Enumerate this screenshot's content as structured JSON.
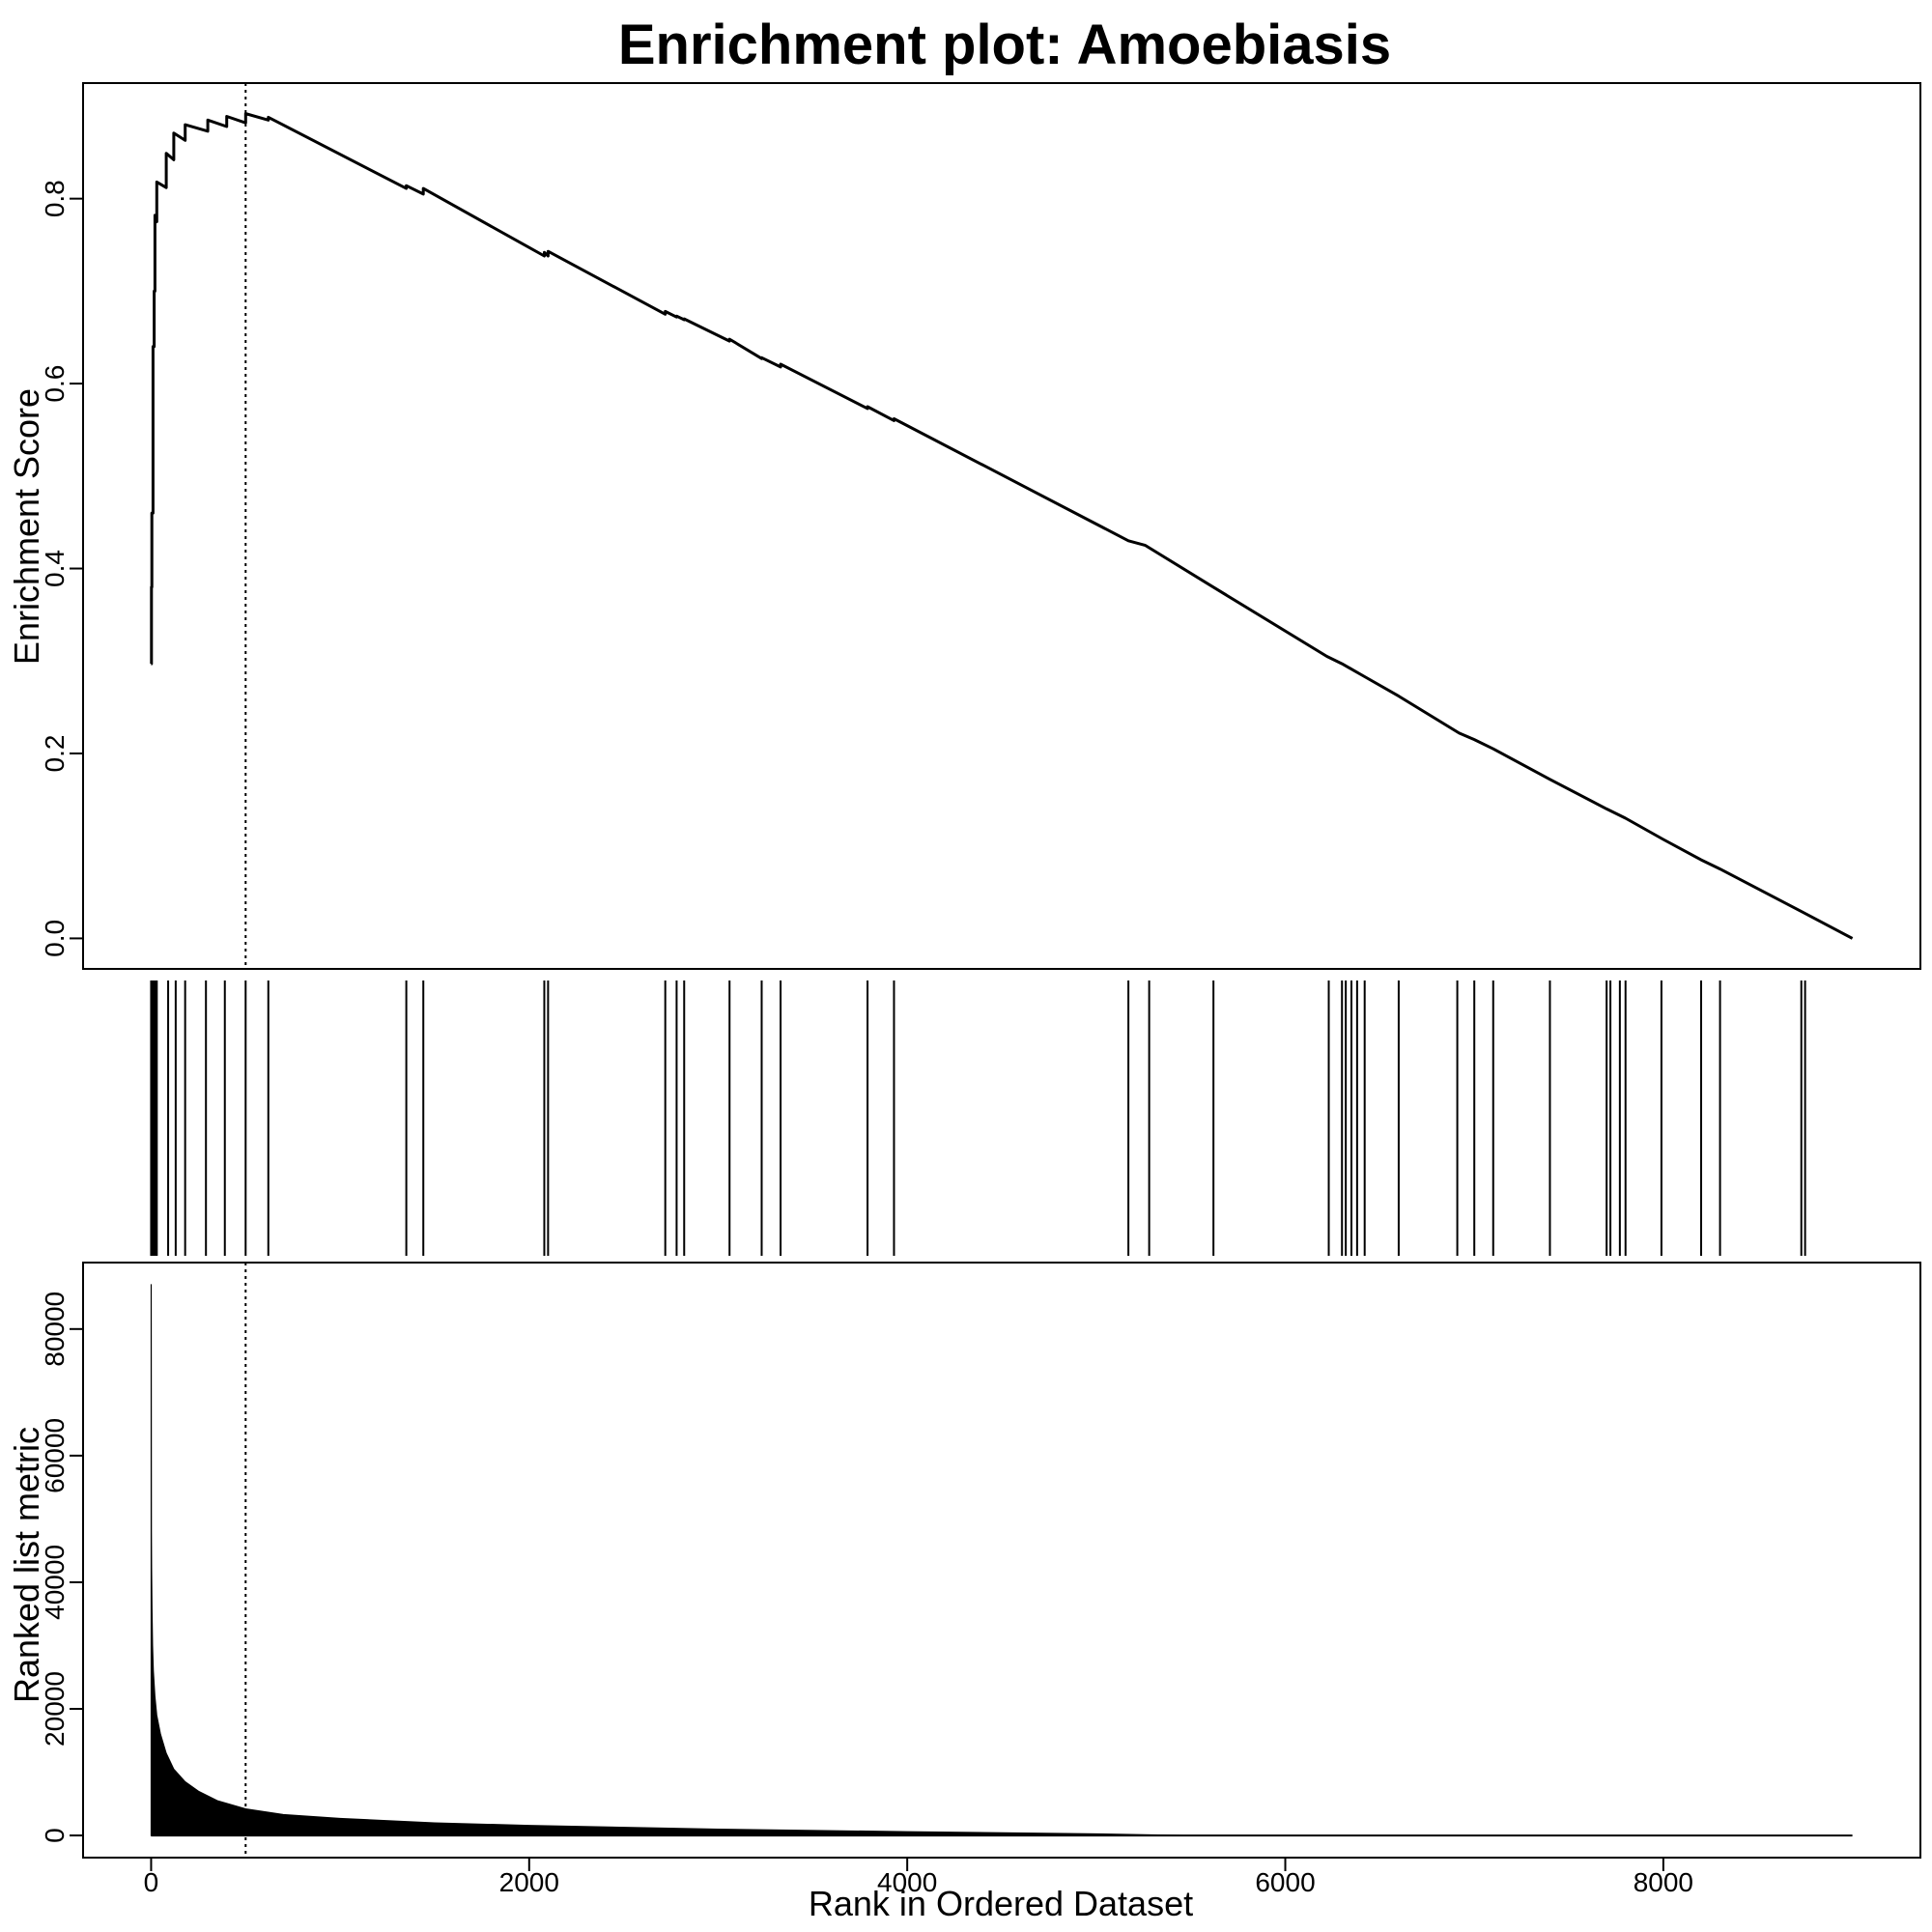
{
  "chart_data": [
    {
      "type": "line",
      "title": "Enrichment plot: Amoebiasis",
      "xlabel": "",
      "ylabel": "Enrichment Score",
      "xlim": [
        -360,
        9360
      ],
      "ylim": [
        -0.033,
        0.925
      ],
      "yticks": [
        "0.0",
        "0.2",
        "0.4",
        "0.6",
        "0.8"
      ],
      "ytick_values": [
        0,
        0.2,
        0.4,
        0.6,
        0.8
      ],
      "grid": false,
      "legend": "none",
      "reference_line": {
        "x": 500,
        "style": "dotted"
      },
      "series": [
        {
          "x": [
            0,
            2,
            2,
            4,
            4,
            10,
            10,
            16,
            16,
            20,
            20,
            30,
            30,
            80,
            80,
            120,
            120,
            180,
            180,
            300,
            300,
            400,
            400,
            500,
            500,
            620,
            620,
            1350,
            1350,
            1440,
            1440,
            2080,
            2080,
            2100,
            2100,
            2720,
            2720,
            2780,
            2780,
            2820,
            2820,
            3060,
            3060,
            3230,
            3230,
            3330,
            3330,
            3790,
            3790,
            3930,
            3930,
            5170,
            5260,
            5610,
            6220,
            6300,
            6360,
            6420,
            6600,
            6920,
            7000,
            7100,
            7400,
            7700,
            7800,
            8000,
            8200,
            8300,
            8740,
            9000
          ],
          "y": [
            0.297,
            0.297,
            0.38,
            0.38,
            0.46,
            0.46,
            0.64,
            0.64,
            0.7,
            0.7,
            0.782,
            0.775,
            0.818,
            0.812,
            0.849,
            0.842,
            0.871,
            0.863,
            0.88,
            0.873,
            0.885,
            0.878,
            0.889,
            0.882,
            0.892,
            0.885,
            0.888,
            0.811,
            0.814,
            0.805,
            0.811,
            0.738,
            0.742,
            0.738,
            0.743,
            0.675,
            0.678,
            0.672,
            0.673,
            0.669,
            0.67,
            0.646,
            0.648,
            0.627,
            0.628,
            0.618,
            0.621,
            0.573,
            0.575,
            0.56,
            0.562,
            0.43,
            0.425,
            0.381,
            0.305,
            0.297,
            0.29,
            0.283,
            0.262,
            0.222,
            0.215,
            0.205,
            0.172,
            0.14,
            0.13,
            0.107,
            0.085,
            0.075,
            0.028,
            0.0
          ]
        }
      ]
    },
    {
      "type": "barcode",
      "hits": [
        0,
        3,
        6,
        9,
        12,
        15,
        18,
        21,
        25,
        30,
        90,
        130,
        180,
        290,
        390,
        500,
        620,
        1350,
        1440,
        2080,
        2100,
        2720,
        2780,
        2820,
        3060,
        3230,
        3330,
        3790,
        3930,
        5170,
        5280,
        5620,
        6230,
        6300,
        6320,
        6350,
        6380,
        6420,
        6600,
        6910,
        7000,
        7100,
        7400,
        7700,
        7720,
        7770,
        7800,
        7990,
        8200,
        8300,
        8730,
        8750
      ]
    },
    {
      "type": "area",
      "xlabel": "Rank in Ordered Dataset",
      "ylabel": "Ranked list metric",
      "xlim": [
        -360,
        9360
      ],
      "ylim": [
        -3500,
        90500
      ],
      "xticks": [
        "0",
        "2000",
        "4000",
        "6000",
        "8000"
      ],
      "xtick_values": [
        0,
        2000,
        4000,
        6000,
        8000
      ],
      "yticks": [
        "0",
        "20000",
        "40000",
        "60000",
        "80000"
      ],
      "ytick_values": [
        0,
        20000,
        40000,
        60000,
        80000
      ],
      "grid": false,
      "legend": "none",
      "reference_line": {
        "x": 500,
        "style": "dotted"
      },
      "series": [
        {
          "x": [
            0,
            1,
            2,
            3,
            5,
            8,
            12,
            20,
            30,
            50,
            80,
            120,
            180,
            250,
            350,
            500,
            700,
            1000,
            1500,
            2000,
            3000,
            4000,
            5000,
            5500,
            6000,
            7000,
            8000,
            9000
          ],
          "y": [
            87000,
            87000,
            48000,
            42000,
            36000,
            30000,
            26000,
            22000,
            19000,
            16000,
            13000,
            10500,
            8500,
            7000,
            5500,
            4200,
            3300,
            2700,
            2000,
            1600,
            1000,
            600,
            250,
            0,
            0,
            0,
            0,
            0
          ]
        }
      ]
    }
  ]
}
